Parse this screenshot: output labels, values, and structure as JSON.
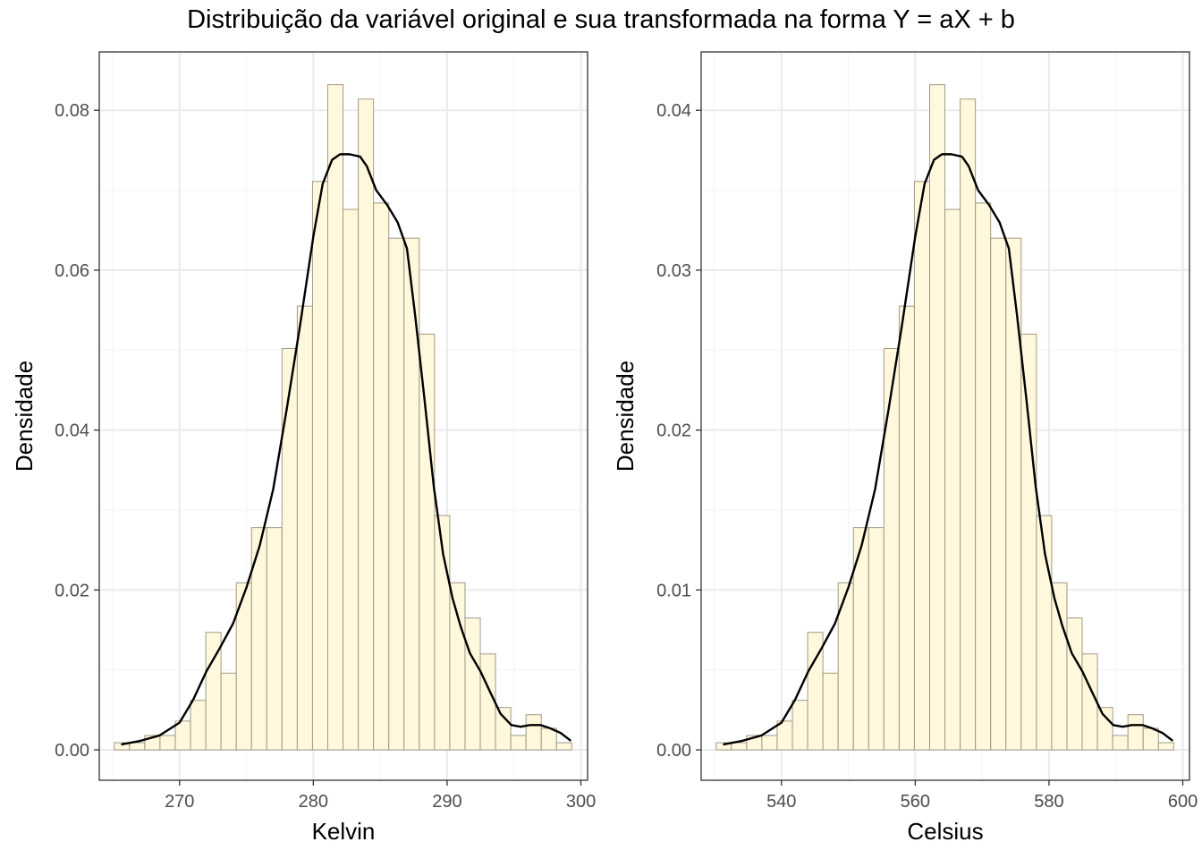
{
  "title": "Distribuição da variável original e sua transformada na forma Y = aX + b",
  "colors": {
    "bar_fill": "#fff8dc",
    "bar_stroke": "#a09a86",
    "density_line": "#000000",
    "grid_major": "#ebebeb",
    "grid_minor": "#f5f5f5",
    "panel_border": "#333333"
  },
  "chart_data": [
    {
      "type": "bar",
      "subtype": "histogram-with-density",
      "xlabel": "Kelvin",
      "ylabel": "Densidade",
      "xlim": [
        264.0,
        300.5
      ],
      "ylim": [
        -0.0038,
        0.0873
      ],
      "xticks": [
        270,
        280,
        290,
        300
      ],
      "yticks": [
        0.0,
        0.02,
        0.04,
        0.06,
        0.08
      ],
      "xtick_labels": [
        "270",
        "280",
        "290",
        "300"
      ],
      "ytick_labels": [
        "0.00",
        "0.02",
        "0.04",
        "0.06",
        "0.08"
      ],
      "bin_width": 1.14,
      "bins": [
        {
          "x0": 265.12,
          "x1": 266.26,
          "density": 0.0009
        },
        {
          "x0": 266.26,
          "x1": 267.4,
          "density": 0.0009
        },
        {
          "x0": 267.4,
          "x1": 268.54,
          "density": 0.0018
        },
        {
          "x0": 268.54,
          "x1": 269.68,
          "density": 0.0018
        },
        {
          "x0": 269.68,
          "x1": 270.82,
          "density": 0.0036
        },
        {
          "x0": 270.82,
          "x1": 271.96,
          "density": 0.0062
        },
        {
          "x0": 271.96,
          "x1": 273.1,
          "density": 0.0147
        },
        {
          "x0": 273.1,
          "x1": 274.24,
          "density": 0.0096
        },
        {
          "x0": 274.24,
          "x1": 275.38,
          "density": 0.0209
        },
        {
          "x0": 275.38,
          "x1": 276.52,
          "density": 0.0278
        },
        {
          "x0": 276.52,
          "x1": 277.66,
          "density": 0.0278
        },
        {
          "x0": 277.66,
          "x1": 278.8,
          "density": 0.0502
        },
        {
          "x0": 278.8,
          "x1": 279.94,
          "density": 0.0555
        },
        {
          "x0": 279.94,
          "x1": 281.08,
          "density": 0.0711
        },
        {
          "x0": 281.08,
          "x1": 282.22,
          "density": 0.0832
        },
        {
          "x0": 282.22,
          "x1": 283.36,
          "density": 0.0676
        },
        {
          "x0": 283.36,
          "x1": 284.5,
          "density": 0.0814
        },
        {
          "x0": 284.5,
          "x1": 285.64,
          "density": 0.0684
        },
        {
          "x0": 285.64,
          "x1": 286.78,
          "density": 0.064
        },
        {
          "x0": 286.78,
          "x1": 287.92,
          "density": 0.064
        },
        {
          "x0": 287.92,
          "x1": 289.06,
          "density": 0.052
        },
        {
          "x0": 289.06,
          "x1": 290.2,
          "density": 0.0293
        },
        {
          "x0": 290.2,
          "x1": 291.34,
          "density": 0.0209
        },
        {
          "x0": 291.34,
          "x1": 292.48,
          "density": 0.0165
        },
        {
          "x0": 292.48,
          "x1": 293.62,
          "density": 0.012
        },
        {
          "x0": 293.62,
          "x1": 294.76,
          "density": 0.0053
        },
        {
          "x0": 294.76,
          "x1": 295.9,
          "density": 0.0018
        },
        {
          "x0": 295.9,
          "x1": 297.04,
          "density": 0.0044
        },
        {
          "x0": 297.04,
          "x1": 298.18,
          "density": 0.0027
        },
        {
          "x0": 298.18,
          "x1": 299.32,
          "density": 0.0009
        }
      ],
      "density_curve": {
        "x": [
          265.7,
          267.0,
          268.5,
          270.0,
          271.0,
          272.0,
          273.0,
          274.0,
          275.0,
          276.0,
          277.0,
          278.0,
          279.0,
          280.0,
          280.7,
          281.4,
          282.0,
          282.7,
          283.5,
          284.0,
          284.7,
          285.5,
          286.3,
          287.0,
          287.6,
          288.3,
          289.0,
          289.7,
          290.4,
          291.0,
          291.7,
          292.5,
          293.2,
          294.0,
          294.8,
          295.5,
          296.2,
          297.0,
          297.7,
          298.5,
          299.2
        ],
        "y": [
          0.0007,
          0.0011,
          0.0018,
          0.0034,
          0.0062,
          0.0098,
          0.0127,
          0.0158,
          0.0203,
          0.0256,
          0.0326,
          0.0425,
          0.053,
          0.0642,
          0.0708,
          0.0738,
          0.0745,
          0.0745,
          0.0742,
          0.073,
          0.07,
          0.0682,
          0.066,
          0.0627,
          0.0545,
          0.044,
          0.033,
          0.0245,
          0.019,
          0.0155,
          0.0121,
          0.0098,
          0.0073,
          0.0045,
          0.0031,
          0.0029,
          0.0031,
          0.0031,
          0.0027,
          0.0021,
          0.0012
        ]
      }
    },
    {
      "type": "bar",
      "subtype": "histogram-with-density",
      "xlabel": "Celsius",
      "ylabel": "Densidade",
      "xlim": [
        528.0,
        601.0
      ],
      "ylim": [
        -0.0019,
        0.04365
      ],
      "xticks": [
        540,
        560,
        580,
        600
      ],
      "yticks": [
        0.0,
        0.01,
        0.02,
        0.03,
        0.04
      ],
      "xtick_labels": [
        "540",
        "560",
        "580",
        "600"
      ],
      "ytick_labels": [
        "0.00",
        "0.01",
        "0.02",
        "0.03",
        "0.04"
      ],
      "bin_width": 2.28,
      "bins": [
        {
          "x0": 530.24,
          "x1": 532.52,
          "density": 0.00045
        },
        {
          "x0": 532.52,
          "x1": 534.8,
          "density": 0.00045
        },
        {
          "x0": 534.8,
          "x1": 537.08,
          "density": 0.0009
        },
        {
          "x0": 537.08,
          "x1": 539.36,
          "density": 0.0009
        },
        {
          "x0": 539.36,
          "x1": 541.64,
          "density": 0.0018
        },
        {
          "x0": 541.64,
          "x1": 543.92,
          "density": 0.0031
        },
        {
          "x0": 543.92,
          "x1": 546.2,
          "density": 0.00735
        },
        {
          "x0": 546.2,
          "x1": 548.48,
          "density": 0.0048
        },
        {
          "x0": 548.48,
          "x1": 550.76,
          "density": 0.01045
        },
        {
          "x0": 550.76,
          "x1": 553.04,
          "density": 0.0139
        },
        {
          "x0": 553.04,
          "x1": 555.32,
          "density": 0.0139
        },
        {
          "x0": 555.32,
          "x1": 557.6,
          "density": 0.0251
        },
        {
          "x0": 557.6,
          "x1": 559.88,
          "density": 0.02775
        },
        {
          "x0": 559.88,
          "x1": 562.16,
          "density": 0.03555
        },
        {
          "x0": 562.16,
          "x1": 564.44,
          "density": 0.0416
        },
        {
          "x0": 564.44,
          "x1": 566.72,
          "density": 0.0338
        },
        {
          "x0": 566.72,
          "x1": 569.0,
          "density": 0.0407
        },
        {
          "x0": 569.0,
          "x1": 571.28,
          "density": 0.0342
        },
        {
          "x0": 571.28,
          "x1": 573.56,
          "density": 0.032
        },
        {
          "x0": 573.56,
          "x1": 575.84,
          "density": 0.032
        },
        {
          "x0": 575.84,
          "x1": 578.12,
          "density": 0.026
        },
        {
          "x0": 578.12,
          "x1": 580.4,
          "density": 0.01465
        },
        {
          "x0": 580.4,
          "x1": 582.68,
          "density": 0.01045
        },
        {
          "x0": 582.68,
          "x1": 584.96,
          "density": 0.00825
        },
        {
          "x0": 584.96,
          "x1": 587.24,
          "density": 0.006
        },
        {
          "x0": 587.24,
          "x1": 589.52,
          "density": 0.00265
        },
        {
          "x0": 589.52,
          "x1": 591.8,
          "density": 0.0009
        },
        {
          "x0": 591.8,
          "x1": 594.08,
          "density": 0.0022
        },
        {
          "x0": 594.08,
          "x1": 596.36,
          "density": 0.00135
        },
        {
          "x0": 596.36,
          "x1": 598.64,
          "density": 0.00045
        }
      ],
      "density_curve": {
        "x": [
          531.4,
          534.0,
          537.0,
          540.0,
          542.0,
          544.0,
          546.0,
          548.0,
          550.0,
          552.0,
          554.0,
          556.0,
          558.0,
          560.0,
          561.4,
          562.8,
          564.0,
          565.4,
          567.0,
          568.0,
          569.4,
          571.0,
          572.6,
          574.0,
          575.2,
          576.6,
          578.0,
          579.4,
          580.8,
          582.0,
          583.4,
          585.0,
          586.4,
          588.0,
          589.6,
          591.0,
          592.4,
          594.0,
          595.4,
          597.0,
          598.4
        ],
        "y": [
          0.00035,
          0.00055,
          0.0009,
          0.0017,
          0.0031,
          0.0049,
          0.00635,
          0.0079,
          0.01015,
          0.0128,
          0.0163,
          0.02125,
          0.0265,
          0.0321,
          0.0354,
          0.0369,
          0.03725,
          0.03725,
          0.0371,
          0.0365,
          0.035,
          0.0341,
          0.033,
          0.03135,
          0.02725,
          0.022,
          0.0165,
          0.01225,
          0.0095,
          0.00775,
          0.00605,
          0.0049,
          0.00365,
          0.00225,
          0.00155,
          0.00145,
          0.00155,
          0.00155,
          0.00135,
          0.00105,
          0.0006
        ]
      }
    }
  ]
}
